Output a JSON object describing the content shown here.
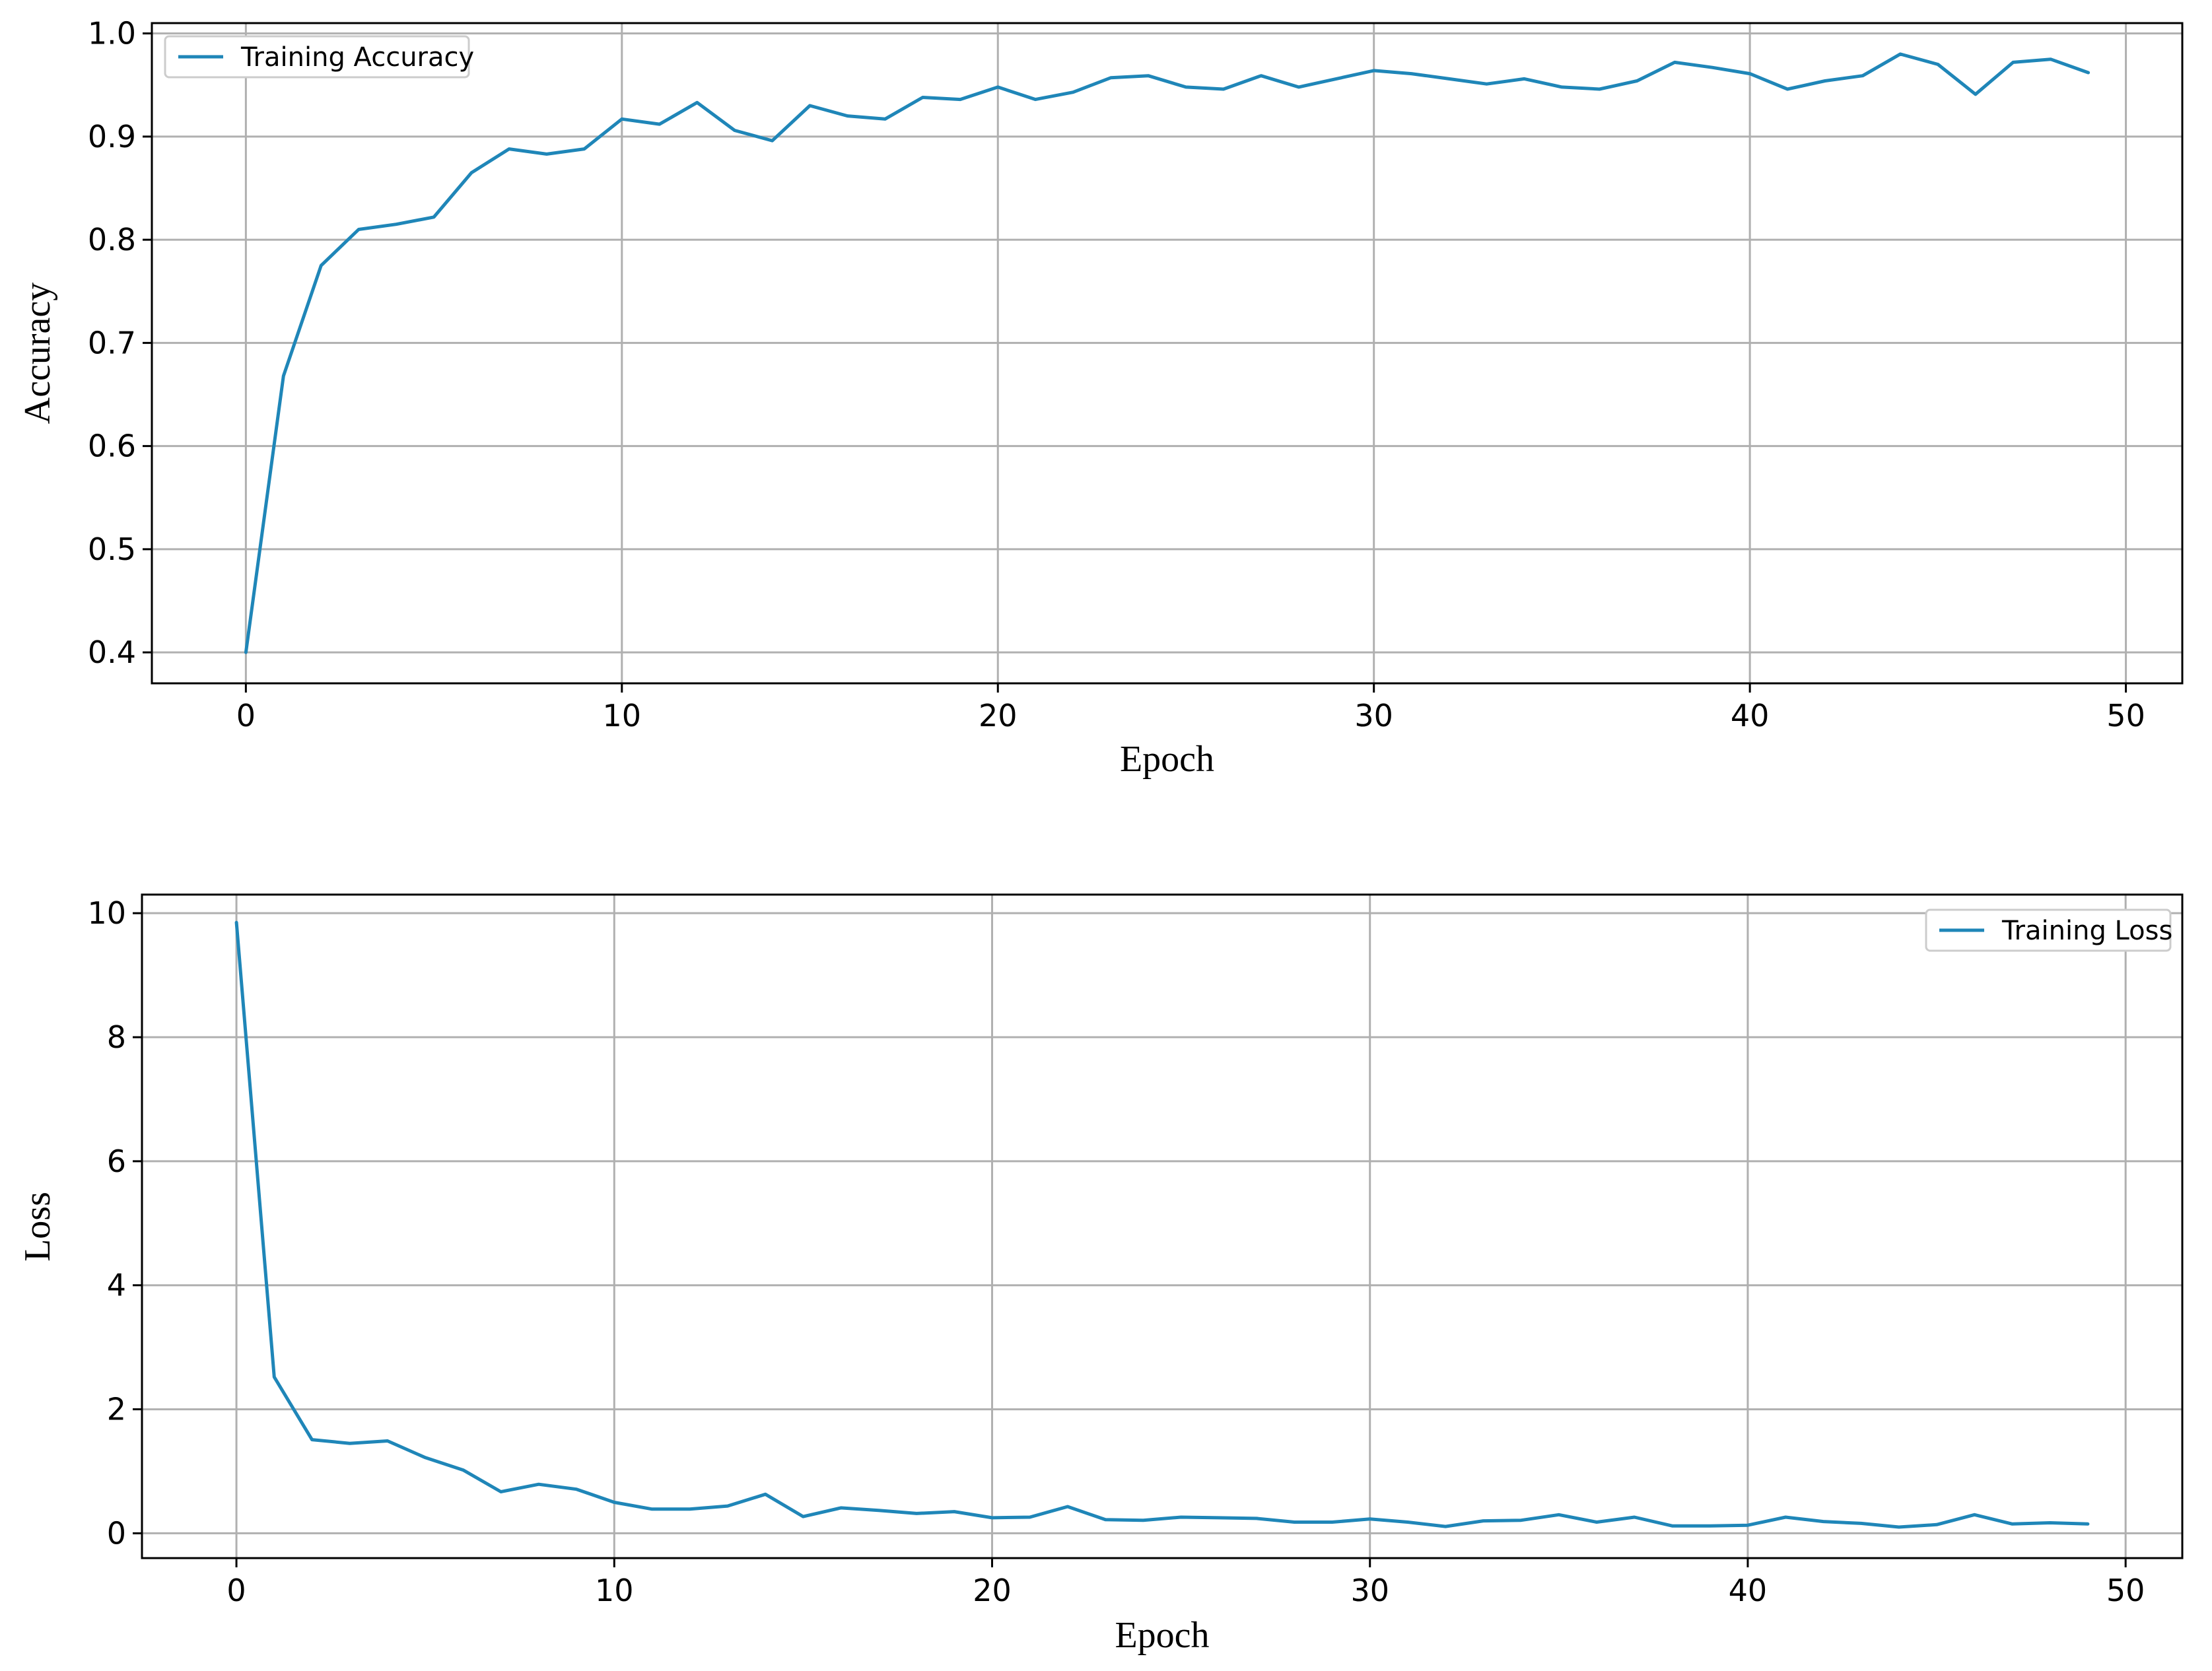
{
  "colors": {
    "series": "#1f86b8",
    "grid": "#b0b0b0",
    "frame": "#000000"
  },
  "chart_data": [
    {
      "type": "line",
      "xlabel": "Epoch",
      "ylabel": "Accuracy",
      "xlim": [
        -2.5,
        51.5
      ],
      "ylim": [
        0.37,
        1.01
      ],
      "xticks": [
        0,
        10,
        20,
        30,
        40,
        50
      ],
      "xtick_labels": [
        "0",
        "10",
        "20",
        "30",
        "40",
        "50"
      ],
      "yticks": [
        0.4,
        0.5,
        0.6,
        0.7,
        0.8,
        0.9,
        1.0
      ],
      "ytick_labels": [
        "0.4",
        "0.5",
        "0.6",
        "0.7",
        "0.8",
        "0.9",
        "1.0"
      ],
      "grid": true,
      "legend_position": "upper-left",
      "series": [
        {
          "name": "Training Accuracy",
          "x": [
            0,
            1,
            2,
            3,
            4,
            5,
            6,
            7,
            8,
            9,
            10,
            11,
            12,
            13,
            14,
            15,
            16,
            17,
            18,
            19,
            20,
            21,
            22,
            23,
            24,
            25,
            26,
            27,
            28,
            29,
            30,
            31,
            32,
            33,
            34,
            35,
            36,
            37,
            38,
            39,
            40,
            41,
            42,
            43,
            44,
            45,
            46,
            47,
            48,
            49
          ],
          "values": [
            0.4,
            0.668,
            0.775,
            0.81,
            0.815,
            0.822,
            0.865,
            0.888,
            0.883,
            0.888,
            0.917,
            0.912,
            0.933,
            0.906,
            0.896,
            0.93,
            0.92,
            0.917,
            0.938,
            0.936,
            0.948,
            0.936,
            0.943,
            0.957,
            0.959,
            0.948,
            0.946,
            0.959,
            0.948,
            0.956,
            0.964,
            0.961,
            0.956,
            0.951,
            0.956,
            0.948,
            0.946,
            0.954,
            0.972,
            0.967,
            0.961,
            0.946,
            0.954,
            0.959,
            0.98,
            0.97,
            0.941,
            0.972,
            0.975,
            0.962
          ]
        }
      ]
    },
    {
      "type": "line",
      "xlabel": "Epoch",
      "ylabel": "Loss",
      "xlim": [
        -2.5,
        51.5
      ],
      "ylim": [
        -0.4,
        10.3
      ],
      "xticks": [
        0,
        10,
        20,
        30,
        40,
        50
      ],
      "xtick_labels": [
        "0",
        "10",
        "20",
        "30",
        "40",
        "50"
      ],
      "yticks": [
        0,
        2,
        4,
        6,
        8,
        10
      ],
      "ytick_labels": [
        "0",
        "2",
        "4",
        "6",
        "8",
        "10"
      ],
      "grid": true,
      "legend_position": "upper-right",
      "series": [
        {
          "name": "Training Loss",
          "x": [
            0,
            1,
            2,
            3,
            4,
            5,
            6,
            7,
            8,
            9,
            10,
            11,
            12,
            13,
            14,
            15,
            16,
            17,
            18,
            19,
            20,
            21,
            22,
            23,
            24,
            25,
            26,
            27,
            28,
            29,
            30,
            31,
            32,
            33,
            34,
            35,
            36,
            37,
            38,
            39,
            40,
            41,
            42,
            43,
            44,
            45,
            46,
            47,
            48,
            49
          ],
          "values": [
            9.85,
            2.52,
            1.51,
            1.45,
            1.49,
            1.22,
            1.02,
            0.67,
            0.79,
            0.71,
            0.5,
            0.39,
            0.39,
            0.44,
            0.63,
            0.27,
            0.41,
            0.37,
            0.32,
            0.35,
            0.25,
            0.26,
            0.43,
            0.22,
            0.21,
            0.26,
            0.25,
            0.24,
            0.18,
            0.18,
            0.23,
            0.18,
            0.11,
            0.2,
            0.21,
            0.3,
            0.18,
            0.26,
            0.12,
            0.12,
            0.13,
            0.26,
            0.19,
            0.16,
            0.1,
            0.14,
            0.3,
            0.15,
            0.17,
            0.15
          ]
        }
      ]
    }
  ]
}
